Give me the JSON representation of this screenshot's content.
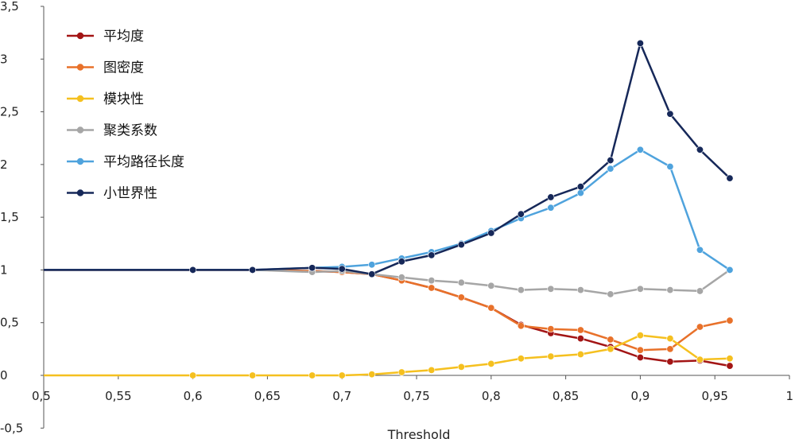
{
  "chart_data": {
    "type": "line",
    "xlabel": "Threshold",
    "ylabel": "",
    "xlim": [
      0.5,
      1.0
    ],
    "ylim": [
      -0.5,
      3.5
    ],
    "x_ticks": [
      {
        "value": 0.5,
        "label": "0,5"
      },
      {
        "value": 0.55,
        "label": "0,55"
      },
      {
        "value": 0.6,
        "label": "0,6"
      },
      {
        "value": 0.65,
        "label": "0,65"
      },
      {
        "value": 0.7,
        "label": "0,7"
      },
      {
        "value": 0.75,
        "label": "0,75"
      },
      {
        "value": 0.8,
        "label": "0,8"
      },
      {
        "value": 0.85,
        "label": "0,85"
      },
      {
        "value": 0.9,
        "label": "0,9"
      },
      {
        "value": 0.95,
        "label": "0,95"
      },
      {
        "value": 1.0,
        "label": "1"
      }
    ],
    "y_ticks": [
      {
        "value": 3.5,
        "label": "3,5"
      },
      {
        "value": 3.0,
        "label": "3"
      },
      {
        "value": 2.5,
        "label": "2,5"
      },
      {
        "value": 2.0,
        "label": "2"
      },
      {
        "value": 1.5,
        "label": "1,5"
      },
      {
        "value": 1.0,
        "label": "1"
      },
      {
        "value": 0.5,
        "label": "0,5"
      },
      {
        "value": 0.0,
        "label": "0"
      },
      {
        "value": -0.5,
        "label": "-0,5"
      }
    ],
    "grid": false,
    "legend_position": "top-left",
    "series": [
      {
        "name": "平均度",
        "color": "#a31515",
        "marker": "circle",
        "points": [
          [
            0.5,
            1.0
          ],
          [
            0.6,
            1.0
          ],
          [
            0.64,
            1.0
          ],
          [
            0.68,
            0.99
          ],
          [
            0.7,
            0.98
          ],
          [
            0.72,
            0.96
          ],
          [
            0.74,
            0.9
          ],
          [
            0.76,
            0.83
          ],
          [
            0.78,
            0.74
          ],
          [
            0.8,
            0.64
          ],
          [
            0.82,
            0.48
          ],
          [
            0.84,
            0.4
          ],
          [
            0.86,
            0.35
          ],
          [
            0.88,
            0.27
          ],
          [
            0.9,
            0.17
          ],
          [
            0.92,
            0.13
          ],
          [
            0.94,
            0.14
          ],
          [
            0.96,
            0.09
          ]
        ]
      },
      {
        "name": "图密度",
        "color": "#e8712a",
        "marker": "circle",
        "points": [
          [
            0.5,
            1.0
          ],
          [
            0.6,
            1.0
          ],
          [
            0.64,
            1.0
          ],
          [
            0.68,
            0.99
          ],
          [
            0.7,
            0.98
          ],
          [
            0.72,
            0.96
          ],
          [
            0.74,
            0.9
          ],
          [
            0.76,
            0.83
          ],
          [
            0.78,
            0.74
          ],
          [
            0.8,
            0.64
          ],
          [
            0.82,
            0.47
          ],
          [
            0.84,
            0.44
          ],
          [
            0.86,
            0.43
          ],
          [
            0.88,
            0.34
          ],
          [
            0.9,
            0.24
          ],
          [
            0.92,
            0.25
          ],
          [
            0.94,
            0.46
          ],
          [
            0.96,
            0.52
          ]
        ]
      },
      {
        "name": "模块性",
        "color": "#f5c01f",
        "marker": "circle",
        "points": [
          [
            0.5,
            0.0
          ],
          [
            0.6,
            0.0
          ],
          [
            0.64,
            0.0
          ],
          [
            0.68,
            0.0
          ],
          [
            0.7,
            0.0
          ],
          [
            0.72,
            0.01
          ],
          [
            0.74,
            0.03
          ],
          [
            0.76,
            0.05
          ],
          [
            0.78,
            0.08
          ],
          [
            0.8,
            0.11
          ],
          [
            0.82,
            0.16
          ],
          [
            0.84,
            0.18
          ],
          [
            0.86,
            0.2
          ],
          [
            0.88,
            0.25
          ],
          [
            0.9,
            0.38
          ],
          [
            0.92,
            0.35
          ],
          [
            0.94,
            0.15
          ],
          [
            0.96,
            0.16
          ]
        ]
      },
      {
        "name": "聚类系数",
        "color": "#a6a6a6",
        "marker": "circle",
        "points": [
          [
            0.5,
            1.0
          ],
          [
            0.6,
            1.0
          ],
          [
            0.64,
            1.0
          ],
          [
            0.68,
            0.98
          ],
          [
            0.7,
            0.99
          ],
          [
            0.72,
            0.96
          ],
          [
            0.74,
            0.93
          ],
          [
            0.76,
            0.9
          ],
          [
            0.78,
            0.88
          ],
          [
            0.8,
            0.85
          ],
          [
            0.82,
            0.81
          ],
          [
            0.84,
            0.82
          ],
          [
            0.86,
            0.81
          ],
          [
            0.88,
            0.77
          ],
          [
            0.9,
            0.82
          ],
          [
            0.92,
            0.81
          ],
          [
            0.94,
            0.8
          ],
          [
            0.96,
            1.0
          ]
        ]
      },
      {
        "name": "平均路径长度",
        "color": "#4fa3dd",
        "marker": "circle",
        "points": [
          [
            0.5,
            1.0
          ],
          [
            0.6,
            1.0
          ],
          [
            0.64,
            1.0
          ],
          [
            0.68,
            1.02
          ],
          [
            0.7,
            1.03
          ],
          [
            0.72,
            1.05
          ],
          [
            0.74,
            1.11
          ],
          [
            0.76,
            1.17
          ],
          [
            0.78,
            1.25
          ],
          [
            0.8,
            1.37
          ],
          [
            0.82,
            1.49
          ],
          [
            0.84,
            1.59
          ],
          [
            0.86,
            1.73
          ],
          [
            0.88,
            1.96
          ],
          [
            0.9,
            2.14
          ],
          [
            0.92,
            1.98
          ],
          [
            0.94,
            1.19
          ],
          [
            0.96,
            1.0
          ]
        ]
      },
      {
        "name": "小世界性",
        "color": "#162859",
        "marker": "circle",
        "points": [
          [
            0.5,
            1.0
          ],
          [
            0.6,
            1.0
          ],
          [
            0.64,
            1.0
          ],
          [
            0.68,
            1.02
          ],
          [
            0.7,
            1.01
          ],
          [
            0.72,
            0.96
          ],
          [
            0.74,
            1.08
          ],
          [
            0.76,
            1.14
          ],
          [
            0.78,
            1.24
          ],
          [
            0.8,
            1.35
          ],
          [
            0.82,
            1.53
          ],
          [
            0.84,
            1.69
          ],
          [
            0.86,
            1.79
          ],
          [
            0.88,
            2.04
          ],
          [
            0.9,
            3.15
          ],
          [
            0.92,
            2.48
          ],
          [
            0.94,
            2.14
          ],
          [
            0.96,
            1.87
          ]
        ]
      }
    ]
  }
}
